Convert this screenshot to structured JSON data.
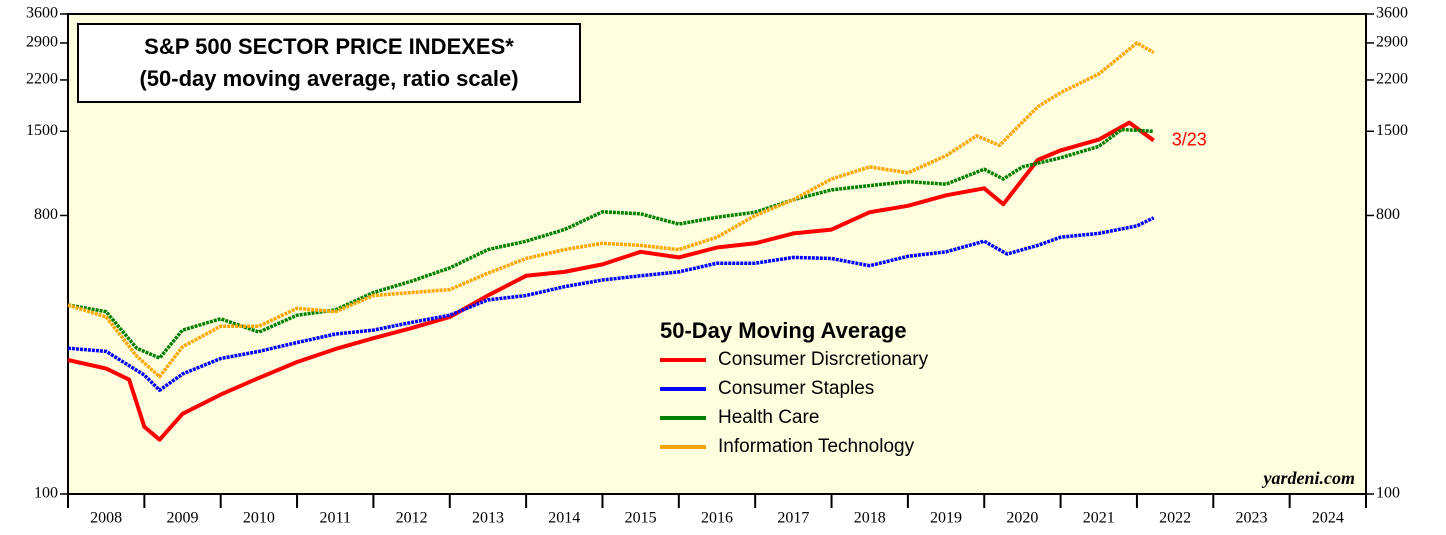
{
  "chart_data": {
    "type": "line",
    "title": [
      "S&P 500 SECTOR PRICE INDEXES*",
      "(50-day moving average, ratio scale)"
    ],
    "legend_title": "50-Day Moving Average",
    "annotation": "3/23",
    "source": "yardeni.com",
    "log_scale": true,
    "ylim": [
      100,
      3600
    ],
    "yticks": [
      100,
      800,
      1500,
      2200,
      2900,
      3600
    ],
    "xlim": [
      2008,
      2025
    ],
    "xticks": [
      2008,
      2009,
      2010,
      2011,
      2012,
      2013,
      2014,
      2015,
      2016,
      2017,
      2018,
      2019,
      2020,
      2021,
      2022,
      2023,
      2024,
      2025
    ],
    "categories": [
      "2008",
      "2009",
      "2010",
      "2011",
      "2012",
      "2013",
      "2014",
      "2015",
      "2016",
      "2017",
      "2018",
      "2019",
      "2020",
      "2021",
      "2022",
      "2023",
      "2024"
    ],
    "series": [
      {
        "name": "Consumer Disrcretionary",
        "color": "#ff0000",
        "x": [
          2008.0,
          2008.5,
          2008.8,
          2009.0,
          2009.2,
          2009.5,
          2010.0,
          2010.5,
          2011.0,
          2011.5,
          2012.0,
          2012.5,
          2013.0,
          2013.5,
          2014.0,
          2014.5,
          2015.0,
          2015.5,
          2016.0,
          2016.5,
          2017.0,
          2017.5,
          2018.0,
          2018.5,
          2019.0,
          2019.5,
          2020.0,
          2020.25,
          2020.7,
          2021.0,
          2021.5,
          2021.9,
          2022.22
        ],
        "values": [
          272,
          255,
          235,
          165,
          150,
          182,
          210,
          238,
          268,
          295,
          320,
          345,
          375,
          440,
          510,
          525,
          555,
          610,
          585,
          630,
          650,
          700,
          720,
          820,
          860,
          930,
          980,
          870,
          1210,
          1300,
          1410,
          1600,
          1400
        ]
      },
      {
        "name": "Consumer Staples",
        "color": "#0000ff",
        "x": [
          2008.0,
          2008.5,
          2009.0,
          2009.2,
          2009.5,
          2010.0,
          2010.5,
          2011.0,
          2011.5,
          2012.0,
          2012.5,
          2013.0,
          2013.5,
          2014.0,
          2014.5,
          2015.0,
          2015.5,
          2016.0,
          2016.5,
          2017.0,
          2017.5,
          2018.0,
          2018.5,
          2019.0,
          2019.5,
          2020.0,
          2020.3,
          2020.7,
          2021.0,
          2021.5,
          2022.0,
          2022.22
        ],
        "values": [
          297,
          290,
          243,
          217,
          245,
          275,
          290,
          310,
          330,
          340,
          360,
          380,
          426,
          440,
          470,
          494,
          510,
          525,
          560,
          560,
          585,
          580,
          550,
          590,
          610,
          660,
          600,
          640,
          680,
          700,
          740,
          786
        ]
      },
      {
        "name": "Health Care",
        "color": "#008000",
        "x": [
          2008.0,
          2008.5,
          2008.9,
          2009.2,
          2009.5,
          2010.0,
          2010.5,
          2011.0,
          2011.5,
          2012.0,
          2012.5,
          2013.0,
          2013.5,
          2014.0,
          2014.5,
          2015.0,
          2015.5,
          2016.0,
          2016.5,
          2017.0,
          2017.5,
          2018.0,
          2018.5,
          2019.0,
          2019.5,
          2020.0,
          2020.25,
          2020.5,
          2021.0,
          2021.5,
          2021.8,
          2022.22
        ],
        "values": [
          410,
          390,
          297,
          276,
          340,
          370,
          335,
          380,
          395,
          450,
          490,
          541,
          620,
          660,
          720,
          822,
          810,
          750,
          790,
          820,
          900,
          968,
          1000,
          1030,
          1010,
          1130,
          1050,
          1150,
          1230,
          1340,
          1520,
          1500
        ]
      },
      {
        "name": "Information Technology",
        "color": "#ffa500",
        "x": [
          2008.0,
          2008.5,
          2008.9,
          2009.2,
          2009.5,
          2010.0,
          2010.5,
          2011.0,
          2011.5,
          2012.0,
          2012.5,
          2013.0,
          2013.5,
          2014.0,
          2014.5,
          2015.0,
          2015.5,
          2016.0,
          2016.5,
          2017.0,
          2017.5,
          2018.0,
          2018.5,
          2019.0,
          2019.5,
          2019.9,
          2020.2,
          2020.7,
          2021.0,
          2021.5,
          2022.0,
          2022.22
        ],
        "values": [
          410,
          375,
          280,
          240,
          300,
          350,
          350,
          400,
          390,
          440,
          450,
          460,
          520,
          580,
          620,
          650,
          640,
          620,
          680,
          800,
          900,
          1050,
          1150,
          1100,
          1250,
          1450,
          1350,
          1800,
          2000,
          2300,
          2900,
          2700
        ]
      }
    ]
  }
}
